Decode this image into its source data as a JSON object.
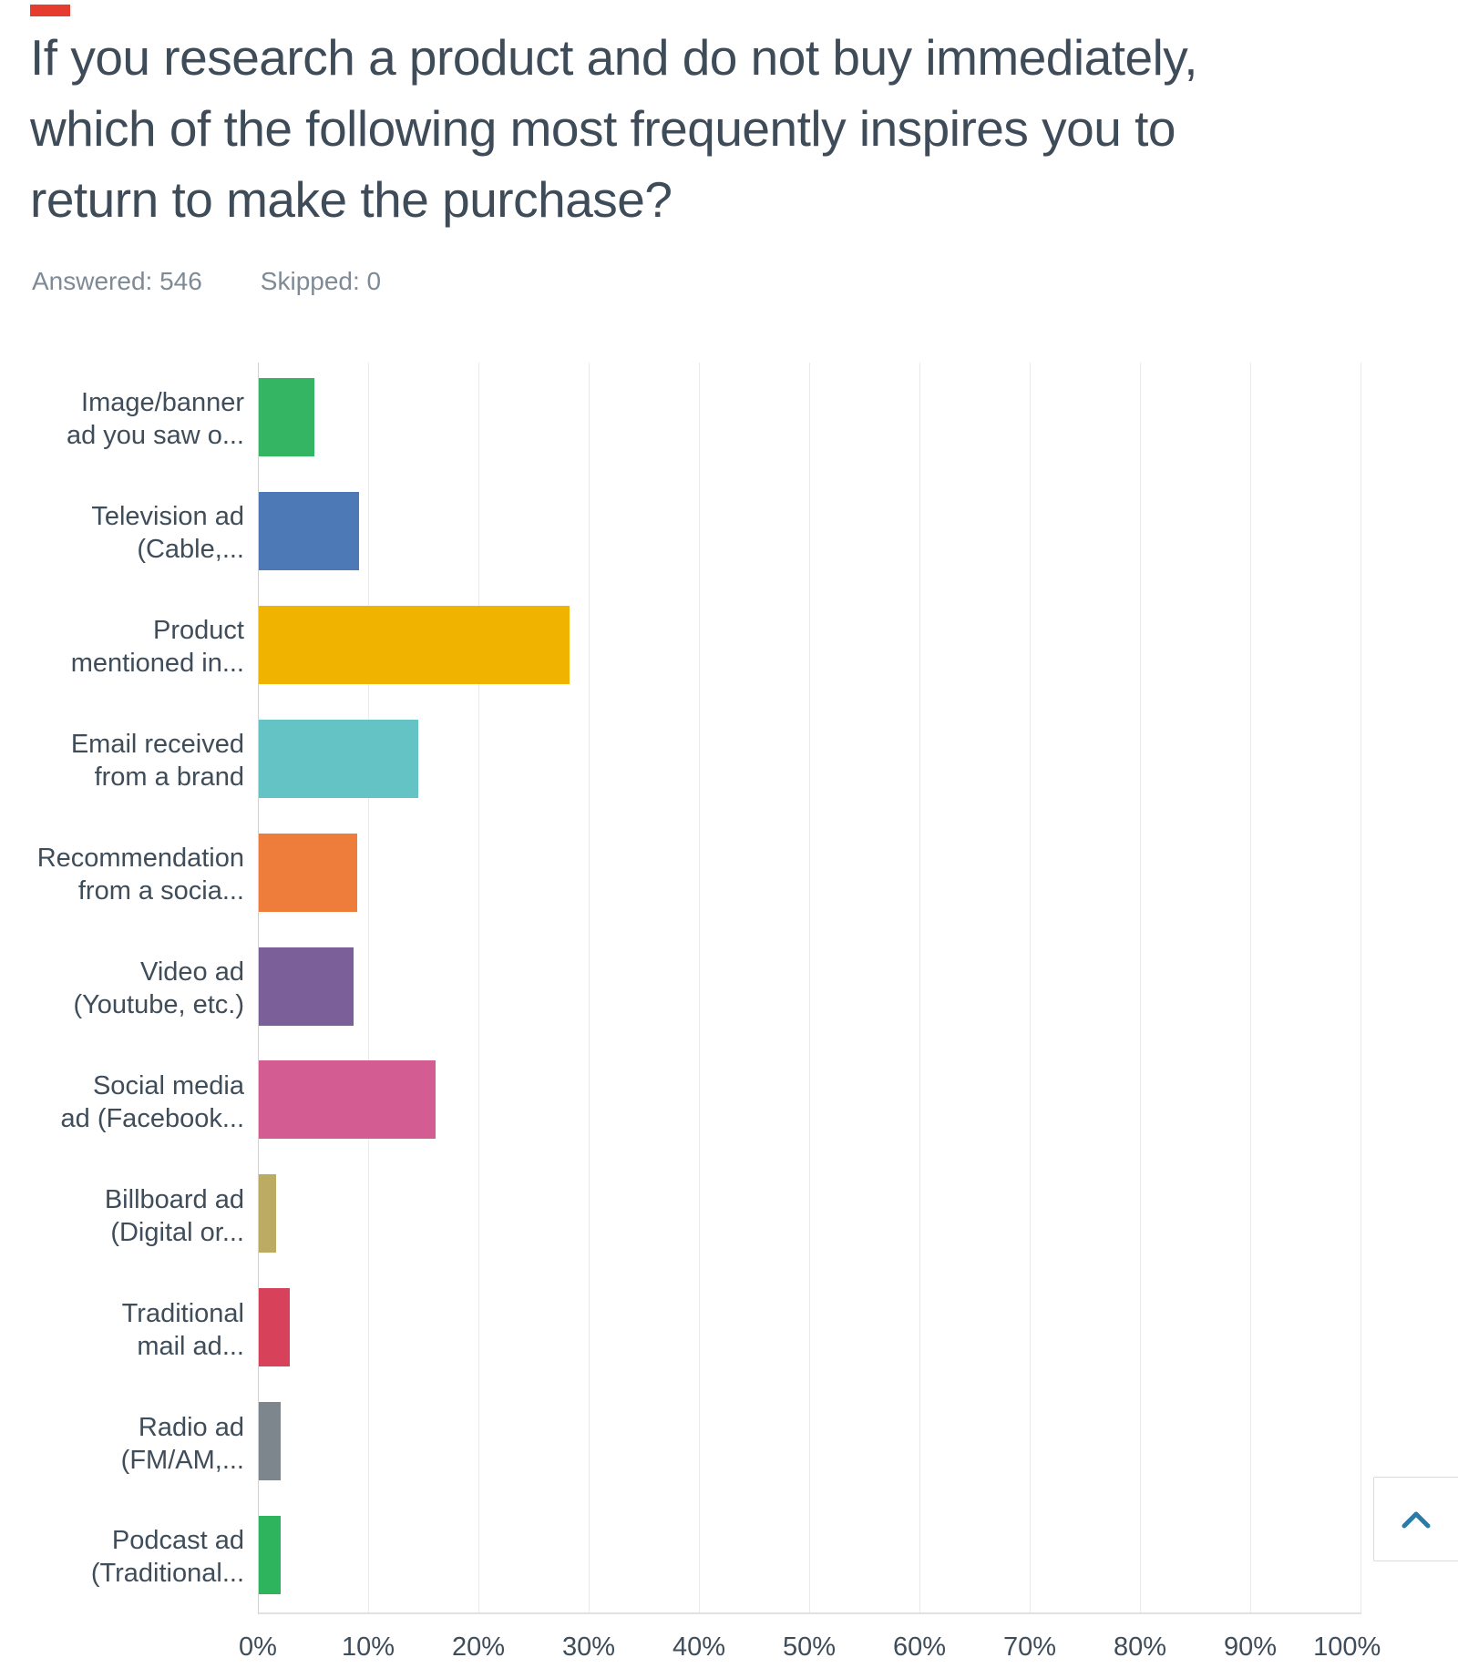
{
  "red_marker": {
    "color": "#e63c2f"
  },
  "header": {
    "title_lines": [
      "If you research a product and do not buy immediately,",
      "which of the following most frequently inspires you to",
      "return to make the purchase?"
    ],
    "answered_label": "Answered: 546",
    "skipped_label": "Skipped: 0"
  },
  "chart_data": {
    "type": "bar",
    "orientation": "horizontal",
    "title": "If you research a product and do not buy immediately, which of the following most frequently inspires you to return to make the purchase?",
    "answered": 546,
    "skipped": 0,
    "categories": [
      "Image/banner ad you saw o...",
      "Television ad (Cable,...",
      "Product mentioned in...",
      "Email received from a brand",
      "Recommendation from a socia...",
      "Video ad (Youtube, etc.)",
      "Social media ad (Facebook...",
      "Billboard ad (Digital or...",
      "Traditional mail ad...",
      "Radio ad (FM/AM,...",
      "Podcast ad (Traditional..."
    ],
    "category_display_lines": [
      [
        "Image/banner",
        "ad you saw o..."
      ],
      [
        "Television ad",
        "(Cable,..."
      ],
      [
        "Product",
        "mentioned in..."
      ],
      [
        "Email received",
        "from a brand"
      ],
      [
        "Recommendation",
        "from a socia..."
      ],
      [
        "Video ad",
        "(Youtube, etc.)"
      ],
      [
        "Social media",
        "ad (Facebook..."
      ],
      [
        "Billboard ad",
        "(Digital or..."
      ],
      [
        "Traditional",
        "mail ad..."
      ],
      [
        "Radio ad",
        "(FM/AM,..."
      ],
      [
        "Podcast ad",
        "(Traditional..."
      ]
    ],
    "values": [
      5.0,
      9.1,
      28.2,
      14.5,
      8.9,
      8.6,
      16.0,
      1.6,
      2.8,
      2.0,
      2.0
    ],
    "bar_colors": [
      "#33b564",
      "#4d79b6",
      "#f0b400",
      "#63c3c5",
      "#ee7d3c",
      "#7b5f99",
      "#d35d92",
      "#bcab62",
      "#d8415a",
      "#7d858d",
      "#2eb45c"
    ],
    "xlabel": "",
    "ylabel": "",
    "xlim": [
      0,
      100
    ],
    "x_tick_labels": [
      "0%",
      "10%",
      "20%",
      "30%",
      "40%",
      "50%",
      "60%",
      "70%",
      "80%",
      "90%",
      "100%"
    ],
    "grid": "vertical",
    "legend": "none"
  },
  "scroll_top_button": {
    "icon": "chevron-up-icon",
    "color": "#2a7ba5"
  }
}
